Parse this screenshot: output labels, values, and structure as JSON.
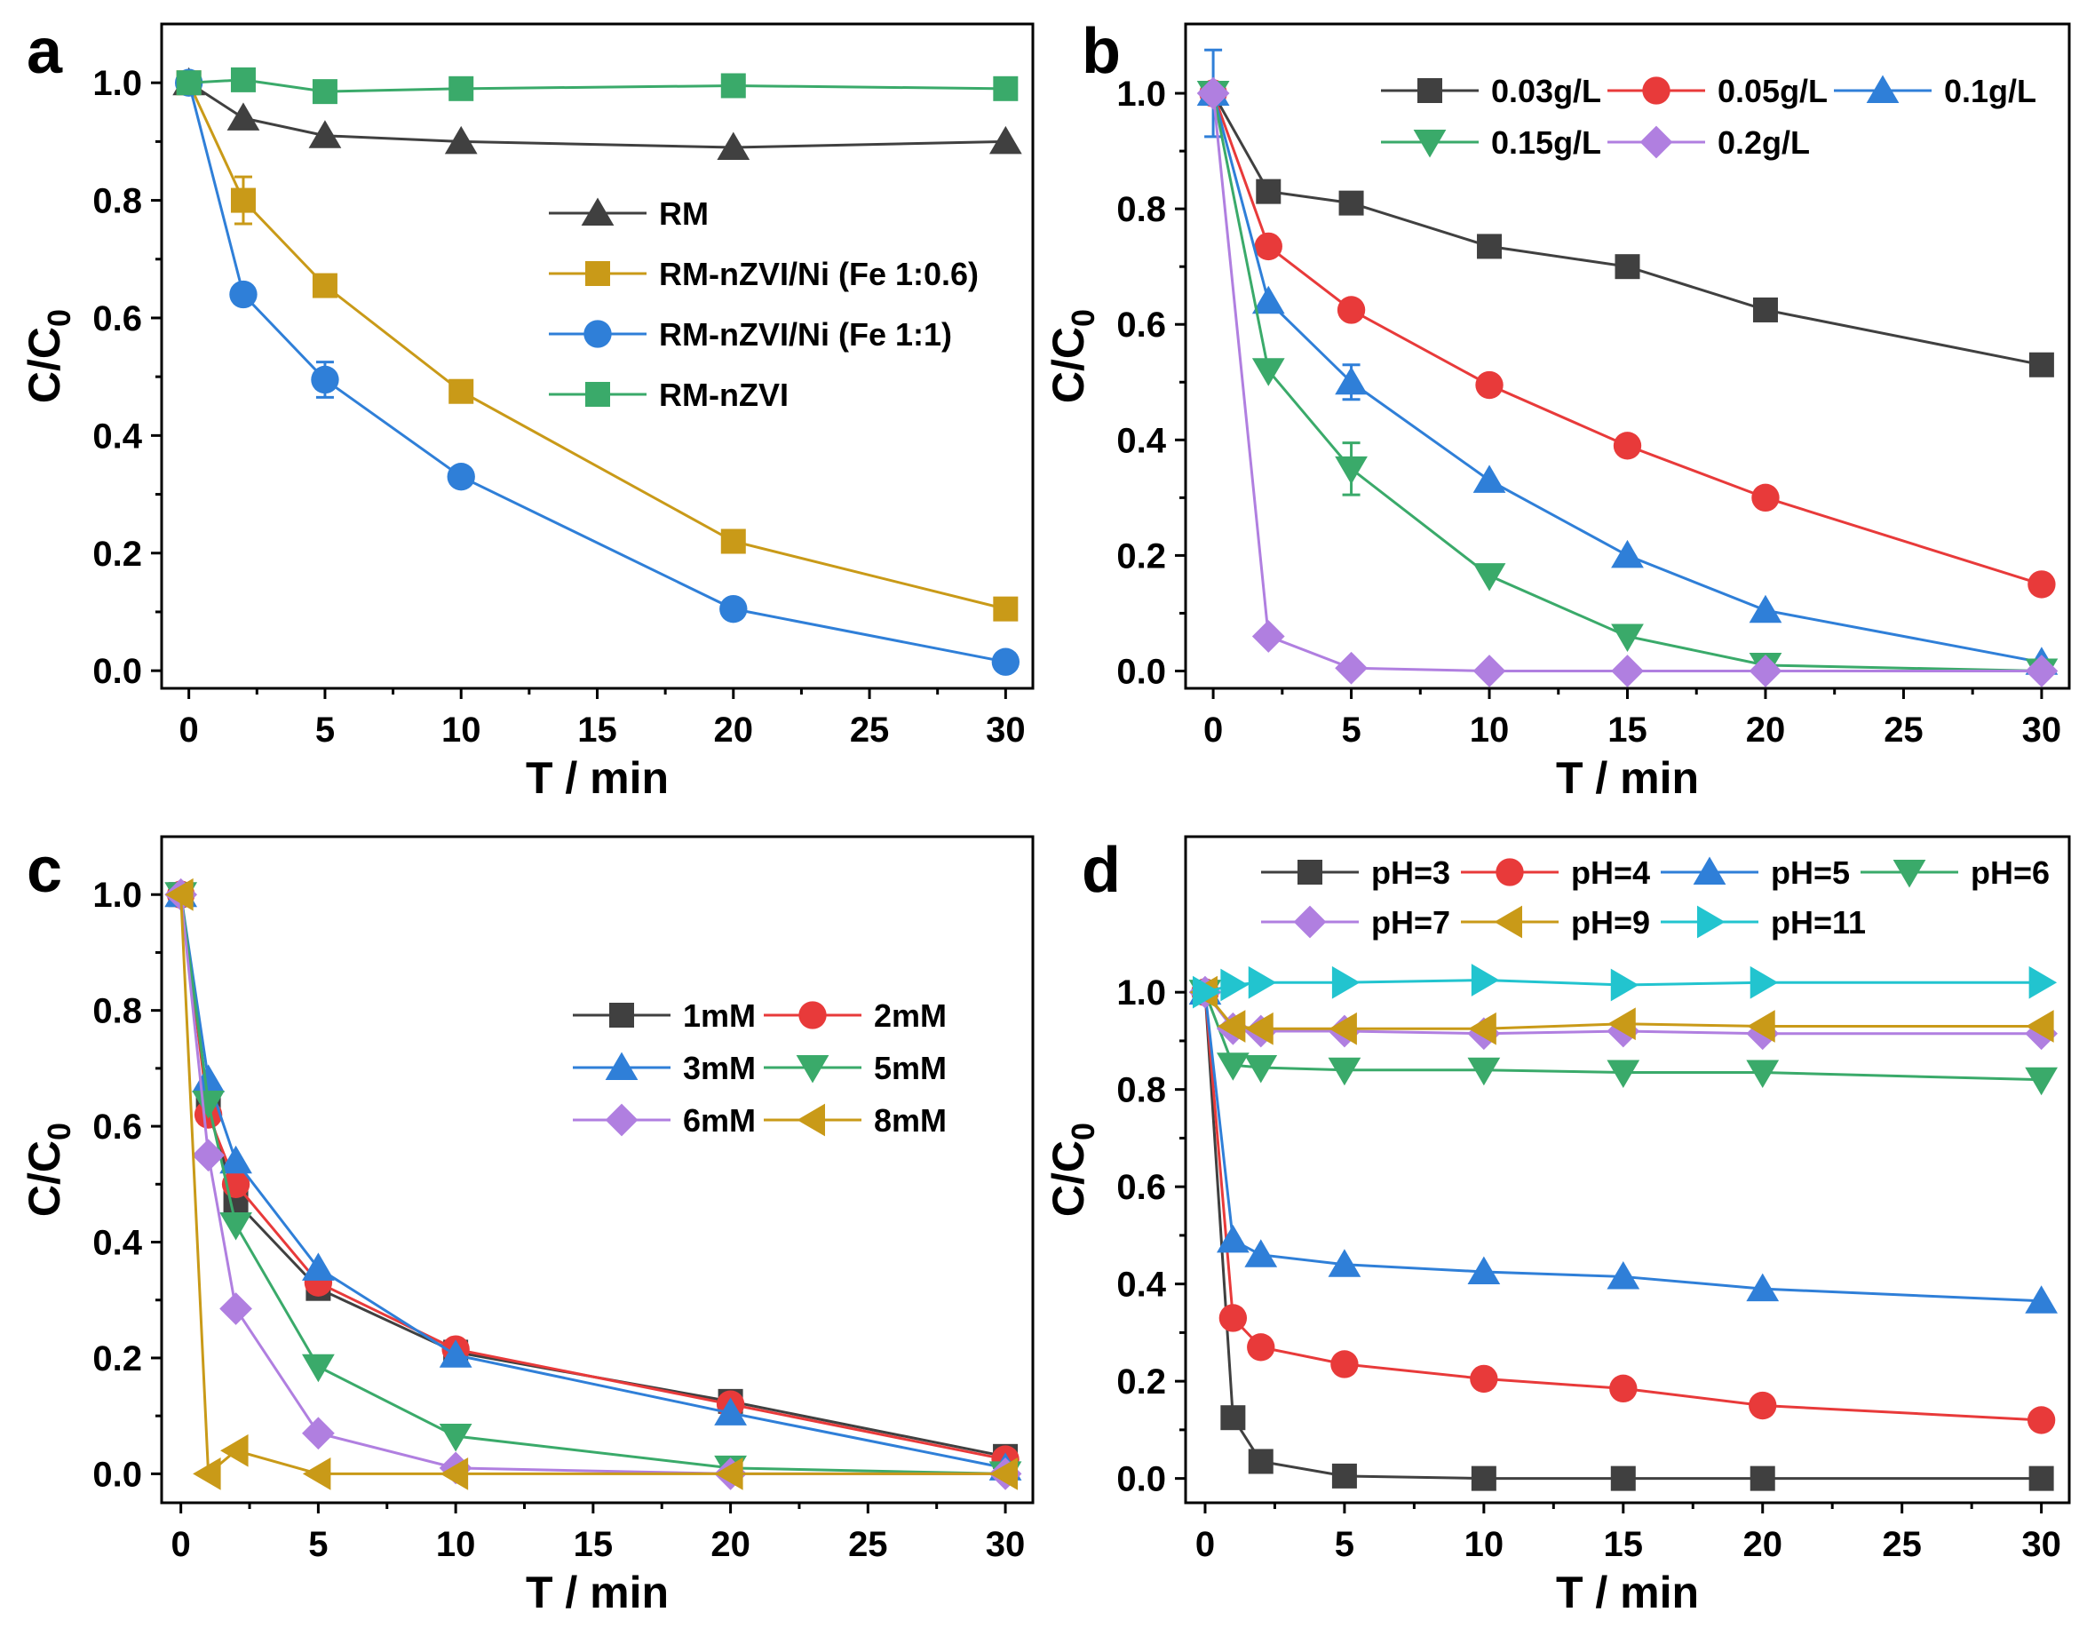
{
  "figure": {
    "title": ""
  },
  "chart_data": [
    {
      "panel": "a",
      "type": "line",
      "xlabel": "T / min",
      "ylabel_main": "C/C",
      "ylabel_sub": "0",
      "xlim": [
        -1,
        31
      ],
      "ylim": [
        -0.03,
        1.1
      ],
      "xticks": [
        0,
        5,
        10,
        15,
        20,
        25,
        30
      ],
      "yticks": [
        0.0,
        0.2,
        0.4,
        0.6,
        0.8,
        1.0
      ],
      "ytick_labels": [
        "0.0",
        "0.2",
        "0.4",
        "0.6",
        "0.8",
        "1.0"
      ],
      "legend_position": "center-right",
      "series": [
        {
          "name": "RM",
          "color": "#404040",
          "marker": "triangle-up",
          "x": [
            0,
            2,
            5,
            10,
            20,
            30
          ],
          "y": [
            1.0,
            0.94,
            0.91,
            0.9,
            0.89,
            0.9
          ]
        },
        {
          "name": "RM-nZVI/Ni (Fe 1:0.6)",
          "color": "#c99a18",
          "marker": "square",
          "x": [
            0,
            2,
            5,
            10,
            20,
            30
          ],
          "y": [
            1.0,
            0.8,
            0.655,
            0.475,
            0.22,
            0.105
          ],
          "err": [
            0,
            0.04,
            0,
            0,
            0,
            0
          ]
        },
        {
          "name": "RM-nZVI/Ni (Fe 1:1)",
          "color": "#2f7fd8",
          "marker": "circle",
          "x": [
            0,
            2,
            5,
            10,
            20,
            30
          ],
          "y": [
            1.0,
            0.64,
            0.495,
            0.33,
            0.105,
            0.015
          ],
          "err": [
            0,
            0,
            0.03,
            0,
            0,
            0
          ]
        },
        {
          "name": "RM-nZVI",
          "color": "#3aaa6a",
          "marker": "square",
          "x": [
            0,
            2,
            5,
            10,
            20,
            30
          ],
          "y": [
            1.0,
            1.005,
            0.985,
            0.99,
            0.995,
            0.99
          ]
        }
      ]
    },
    {
      "panel": "b",
      "type": "line",
      "xlabel": "T / min",
      "ylabel_main": "C/C",
      "ylabel_sub": "0",
      "xlim": [
        -1,
        31
      ],
      "ylim": [
        -0.03,
        1.12
      ],
      "xticks": [
        0,
        5,
        10,
        15,
        20,
        25,
        30
      ],
      "yticks": [
        0.0,
        0.2,
        0.4,
        0.6,
        0.8,
        1.0
      ],
      "ytick_labels": [
        "0.0",
        "0.2",
        "0.4",
        "0.6",
        "0.8",
        "1.0"
      ],
      "legend_position": "top-right",
      "series": [
        {
          "name": "0.03g/L",
          "color": "#404040",
          "marker": "square",
          "x": [
            0,
            2,
            5,
            10,
            15,
            20,
            30
          ],
          "y": [
            1.0,
            0.83,
            0.81,
            0.735,
            0.7,
            0.625,
            0.53
          ]
        },
        {
          "name": "0.05g/L",
          "color": "#e83a3a",
          "marker": "circle",
          "x": [
            0,
            2,
            5,
            10,
            15,
            20,
            30
          ],
          "y": [
            1.0,
            0.735,
            0.625,
            0.495,
            0.39,
            0.3,
            0.15
          ]
        },
        {
          "name": "0.1g/L",
          "color": "#2f7fd8",
          "marker": "triangle-up",
          "x": [
            0,
            2,
            5,
            10,
            15,
            20,
            30
          ],
          "y": [
            1.0,
            0.64,
            0.5,
            0.33,
            0.2,
            0.105,
            0.015
          ],
          "err": [
            0.075,
            0,
            0.03,
            0,
            0,
            0,
            0
          ]
        },
        {
          "name": "0.15g/L",
          "color": "#3aaa6a",
          "marker": "triangle-down",
          "x": [
            0,
            2,
            5,
            10,
            15,
            20,
            30
          ],
          "y": [
            1.0,
            0.52,
            0.35,
            0.165,
            0.06,
            0.01,
            0.0
          ],
          "err": [
            0,
            0,
            0.045,
            0,
            0,
            0,
            0
          ]
        },
        {
          "name": "0.2g/L",
          "color": "#b07fe0",
          "marker": "diamond",
          "x": [
            0,
            2,
            5,
            10,
            15,
            20,
            30
          ],
          "y": [
            1.0,
            0.06,
            0.005,
            0.0,
            0.0,
            0.0,
            0.0
          ]
        }
      ]
    },
    {
      "panel": "c",
      "type": "line",
      "xlabel": "T / min",
      "ylabel_main": "C/C",
      "ylabel_sub": "0",
      "xlim": [
        -0.7,
        31
      ],
      "ylim": [
        -0.05,
        1.1
      ],
      "xticks": [
        0,
        5,
        10,
        15,
        20,
        25,
        30
      ],
      "yticks": [
        0.0,
        0.2,
        0.4,
        0.6,
        0.8,
        1.0
      ],
      "ytick_labels": [
        "0.0",
        "0.2",
        "0.4",
        "0.6",
        "0.8",
        "1.0"
      ],
      "legend_position": "center-right",
      "series": [
        {
          "name": "1mM",
          "color": "#404040",
          "marker": "square",
          "x": [
            0,
            1,
            2,
            5,
            10,
            20,
            30
          ],
          "y": [
            1.0,
            0.63,
            0.47,
            0.32,
            0.21,
            0.125,
            0.03
          ]
        },
        {
          "name": "2mM",
          "color": "#e83a3a",
          "marker": "circle",
          "x": [
            0,
            1,
            2,
            5,
            10,
            20,
            30
          ],
          "y": [
            1.0,
            0.62,
            0.5,
            0.33,
            0.215,
            0.12,
            0.025
          ]
        },
        {
          "name": "3mM",
          "color": "#2f7fd8",
          "marker": "triangle-up",
          "x": [
            0,
            1,
            2,
            5,
            10,
            20,
            30
          ],
          "y": [
            1.0,
            0.68,
            0.54,
            0.355,
            0.205,
            0.105,
            0.01
          ]
        },
        {
          "name": "5mM",
          "color": "#3aaa6a",
          "marker": "triangle-down",
          "x": [
            0,
            1,
            2,
            5,
            10,
            20,
            30
          ],
          "y": [
            1.0,
            0.64,
            0.43,
            0.185,
            0.065,
            0.01,
            0.0
          ]
        },
        {
          "name": "6mM",
          "color": "#b07fe0",
          "marker": "diamond",
          "x": [
            0,
            1,
            2,
            5,
            10,
            20,
            30
          ],
          "y": [
            1.0,
            0.55,
            0.285,
            0.07,
            0.01,
            0.0,
            0.0
          ]
        },
        {
          "name": "8mM",
          "color": "#c99a18",
          "marker": "triangle-left",
          "x": [
            0,
            1,
            2,
            5,
            10,
            20,
            30
          ],
          "y": [
            1.0,
            0.0,
            0.04,
            0.0,
            0.0,
            0.0,
            0.0
          ]
        }
      ]
    },
    {
      "panel": "d",
      "type": "line",
      "xlabel": "T / min",
      "ylabel_main": "C/C",
      "ylabel_sub": "0",
      "xlim": [
        -0.7,
        31
      ],
      "ylim": [
        -0.05,
        1.32
      ],
      "xticks": [
        0,
        5,
        10,
        15,
        20,
        25,
        30
      ],
      "yticks": [
        0.0,
        0.2,
        0.4,
        0.6,
        0.8,
        1.0
      ],
      "ytick_labels": [
        "0.0",
        "0.2",
        "0.4",
        "0.6",
        "0.8",
        "1.0"
      ],
      "legend_position": "top",
      "series": [
        {
          "name": "pH=3",
          "color": "#404040",
          "marker": "square",
          "x": [
            0,
            1,
            2,
            5,
            10,
            15,
            20,
            30
          ],
          "y": [
            1.0,
            0.125,
            0.035,
            0.005,
            0.0,
            0.0,
            0.0,
            0.0
          ]
        },
        {
          "name": "pH=4",
          "color": "#e83a3a",
          "marker": "circle",
          "x": [
            0,
            1,
            2,
            5,
            10,
            15,
            20,
            30
          ],
          "y": [
            1.0,
            0.33,
            0.27,
            0.235,
            0.205,
            0.185,
            0.15,
            0.12
          ]
        },
        {
          "name": "pH=5",
          "color": "#2f7fd8",
          "marker": "triangle-up",
          "x": [
            0,
            1,
            2,
            5,
            10,
            15,
            20,
            30
          ],
          "y": [
            1.0,
            0.49,
            0.46,
            0.44,
            0.425,
            0.415,
            0.39,
            0.365
          ]
        },
        {
          "name": "pH=6",
          "color": "#3aaa6a",
          "marker": "triangle-down",
          "x": [
            0,
            1,
            2,
            5,
            10,
            15,
            20,
            30
          ],
          "y": [
            1.0,
            0.85,
            0.845,
            0.84,
            0.84,
            0.835,
            0.835,
            0.82
          ]
        },
        {
          "name": "pH=7",
          "color": "#b07fe0",
          "marker": "diamond",
          "x": [
            0,
            1,
            2,
            5,
            10,
            15,
            20,
            30
          ],
          "y": [
            1.0,
            0.925,
            0.92,
            0.92,
            0.915,
            0.92,
            0.915,
            0.915
          ]
        },
        {
          "name": "pH=9",
          "color": "#c99a18",
          "marker": "triangle-left",
          "x": [
            0,
            1,
            2,
            5,
            10,
            15,
            20,
            30
          ],
          "y": [
            1.0,
            0.93,
            0.925,
            0.925,
            0.925,
            0.935,
            0.93,
            0.93
          ]
        },
        {
          "name": "pH=11",
          "color": "#22c4cf",
          "marker": "triangle-right",
          "x": [
            0,
            1,
            2,
            5,
            10,
            15,
            20,
            30
          ],
          "y": [
            1.0,
            1.015,
            1.02,
            1.02,
            1.025,
            1.015,
            1.02,
            1.02
          ]
        }
      ]
    }
  ]
}
